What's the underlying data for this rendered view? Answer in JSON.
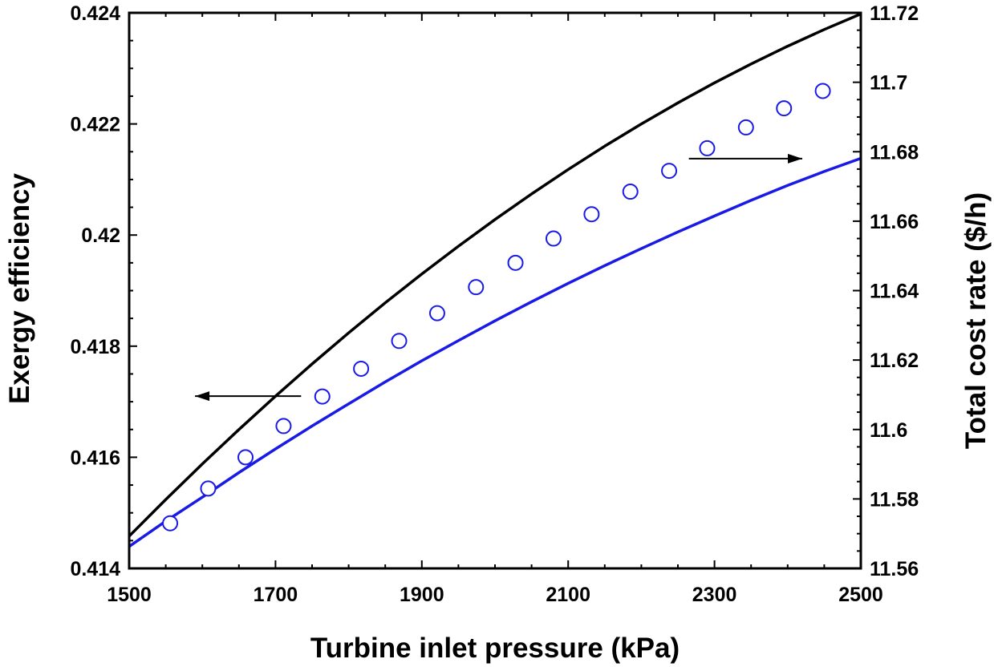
{
  "chart_data": {
    "type": "line",
    "xlabel": "Turbine inlet pressure (kPa)",
    "ylabel_left": "Exergy efficiency",
    "ylabel_right": "Total cost rate ($/h)",
    "xlim": [
      1500,
      2500
    ],
    "ylim_left": [
      0.414,
      0.424
    ],
    "ylim_right": [
      11.56,
      11.72
    ],
    "x_ticks": [
      "1500",
      "1700",
      "1900",
      "2100",
      "2300",
      "2500"
    ],
    "y_left_ticks": [
      "0.414",
      "0.416",
      "0.418",
      "0.42",
      "0.422",
      "0.424"
    ],
    "y_right_ticks": [
      "11.56",
      "11.58",
      "11.6",
      "11.62",
      "11.64",
      "11.66",
      "11.68",
      "11.7",
      "11.72"
    ],
    "grid": false,
    "series": [
      {
        "name": "Exergy efficiency",
        "axis": "left",
        "color": "#000000",
        "marker": "none",
        "x": [
          1500,
          1550,
          1600,
          1650,
          1700,
          1750,
          1800,
          1850,
          1900,
          1950,
          2000,
          2050,
          2100,
          2150,
          2200,
          2250,
          2300,
          2350,
          2400,
          2450,
          2500
        ],
        "values": [
          0.41458,
          0.41524,
          0.41588,
          0.4165,
          0.4171,
          0.41768,
          0.41824,
          0.41878,
          0.4193,
          0.4198,
          0.42028,
          0.42074,
          0.42118,
          0.4216,
          0.422,
          0.42238,
          0.42274,
          0.42308,
          0.4234,
          0.4237,
          0.42398
        ]
      },
      {
        "name": "Total cost rate",
        "axis": "right",
        "color": "#1a1ae6",
        "marker": "open-circle",
        "x": [
          1500,
          1550,
          1600,
          1650,
          1700,
          1750,
          1800,
          1850,
          1900,
          1950,
          2000,
          2050,
          2100,
          2150,
          2200,
          2250,
          2300,
          2350,
          2400,
          2450,
          2500
        ],
        "values": [
          11.5663,
          11.5736,
          11.5805,
          11.5876,
          11.5944,
          11.601,
          11.6074,
          11.6137,
          11.6198,
          11.6256,
          11.6313,
          11.6368,
          11.6421,
          11.6472,
          11.6521,
          11.6569,
          11.6615,
          11.666,
          11.6703,
          11.6743,
          11.6781
        ],
        "marker_x": [
          1556,
          1608,
          1659,
          1711,
          1764,
          1817,
          1869,
          1921,
          1974,
          2028,
          2080,
          2132,
          2185,
          2238,
          2290,
          2343,
          2395,
          2448
        ],
        "marker_values": [
          11.573,
          11.583,
          11.592,
          11.601,
          11.6095,
          11.6175,
          11.6255,
          11.6335,
          11.641,
          11.648,
          11.655,
          11.662,
          11.6685,
          11.6745,
          11.681,
          11.687,
          11.6925,
          11.6975
        ]
      }
    ],
    "annotations": [
      {
        "text": "",
        "target_axis": "left",
        "from": [
          1735,
          0.4171
        ],
        "to": [
          1590,
          0.4171
        ]
      },
      {
        "text": "",
        "target_axis": "right",
        "from": [
          2265,
          11.678
        ],
        "to": [
          2420,
          11.678
        ]
      }
    ]
  }
}
